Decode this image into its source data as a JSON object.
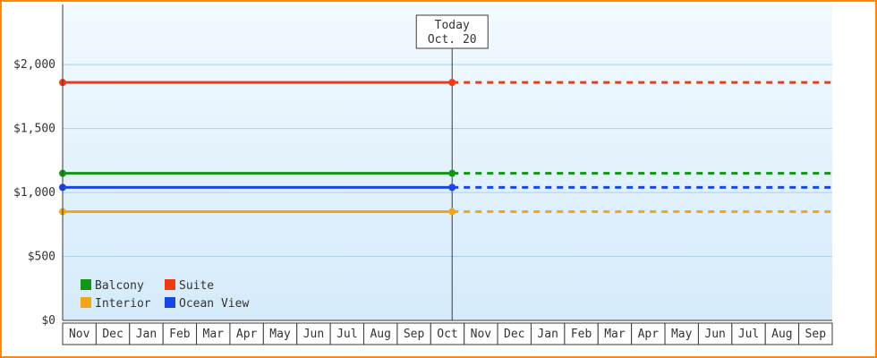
{
  "chart_data": {
    "type": "line",
    "description": "Cabin price history per category, flat lines to Today then dashed forecast",
    "x_categories": [
      "Nov",
      "Dec",
      "Jan",
      "Feb",
      "Mar",
      "Apr",
      "May",
      "Jun",
      "Jul",
      "Aug",
      "Sep",
      "Oct",
      "Nov",
      "Dec",
      "Jan",
      "Feb",
      "Mar",
      "Apr",
      "May",
      "Jun",
      "Jul",
      "Aug",
      "Sep"
    ],
    "ylim": [
      0,
      2400
    ],
    "grid": true,
    "legend_position": "bottom-left",
    "y_ticks": [
      {
        "value": 0,
        "label": "$0"
      },
      {
        "value": 500,
        "label": "$500"
      },
      {
        "value": 1000,
        "label": "$1,000"
      },
      {
        "value": 1500,
        "label": "$1,500"
      },
      {
        "value": 2000,
        "label": "$2,000"
      }
    ],
    "today": {
      "category_index": 11,
      "offset": 0.64,
      "label_line1": "Today",
      "label_line2": "Oct. 20"
    },
    "series": [
      {
        "name": "Balcony",
        "color": "#149414",
        "value": 1150
      },
      {
        "name": "Suite",
        "color": "#ED3B18",
        "value": 1860
      },
      {
        "name": "Interior",
        "color": "#F2A71B",
        "value": 850
      },
      {
        "name": "Ocean View",
        "color": "#1847E6",
        "value": 1040
      }
    ],
    "legend_rows": [
      [
        "Balcony",
        "Suite"
      ],
      [
        "Interior",
        "Ocean View"
      ]
    ],
    "style": {
      "border_color": "#FF8C00",
      "plot_bg_top": "#F2FAFF",
      "plot_bg_bottom": "#D5EBFA",
      "grid_color": "#A9CFE9",
      "axis_color": "#3A3A3A",
      "text_color": "#333333",
      "cell_bg": "#FFFFFF"
    }
  }
}
